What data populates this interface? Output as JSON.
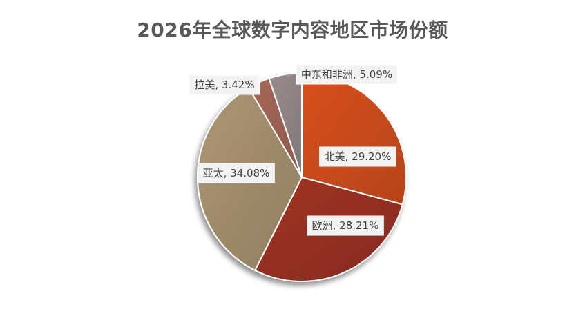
{
  "chart_data": {
    "type": "pie",
    "title": "2026年全球数字内容地区市场份额",
    "categories": [
      "北美",
      "欧洲",
      "亚太",
      "拉美",
      "中东和非洲"
    ],
    "values": [
      29.2,
      28.21,
      34.08,
      3.42,
      5.09
    ],
    "labels": [
      "北美, 29.20%",
      "欧洲, 28.21%",
      "亚太, 34.08%",
      "拉美, 3.42%",
      "中东和非洲, 5.09%"
    ],
    "colors": [
      "#C94A1C",
      "#952F22",
      "#A08C6B",
      "#9B6152",
      "#8F8383"
    ],
    "start_angle_deg": 0,
    "direction": "clockwise",
    "legend": "none",
    "data_labels": "category and percentage"
  }
}
